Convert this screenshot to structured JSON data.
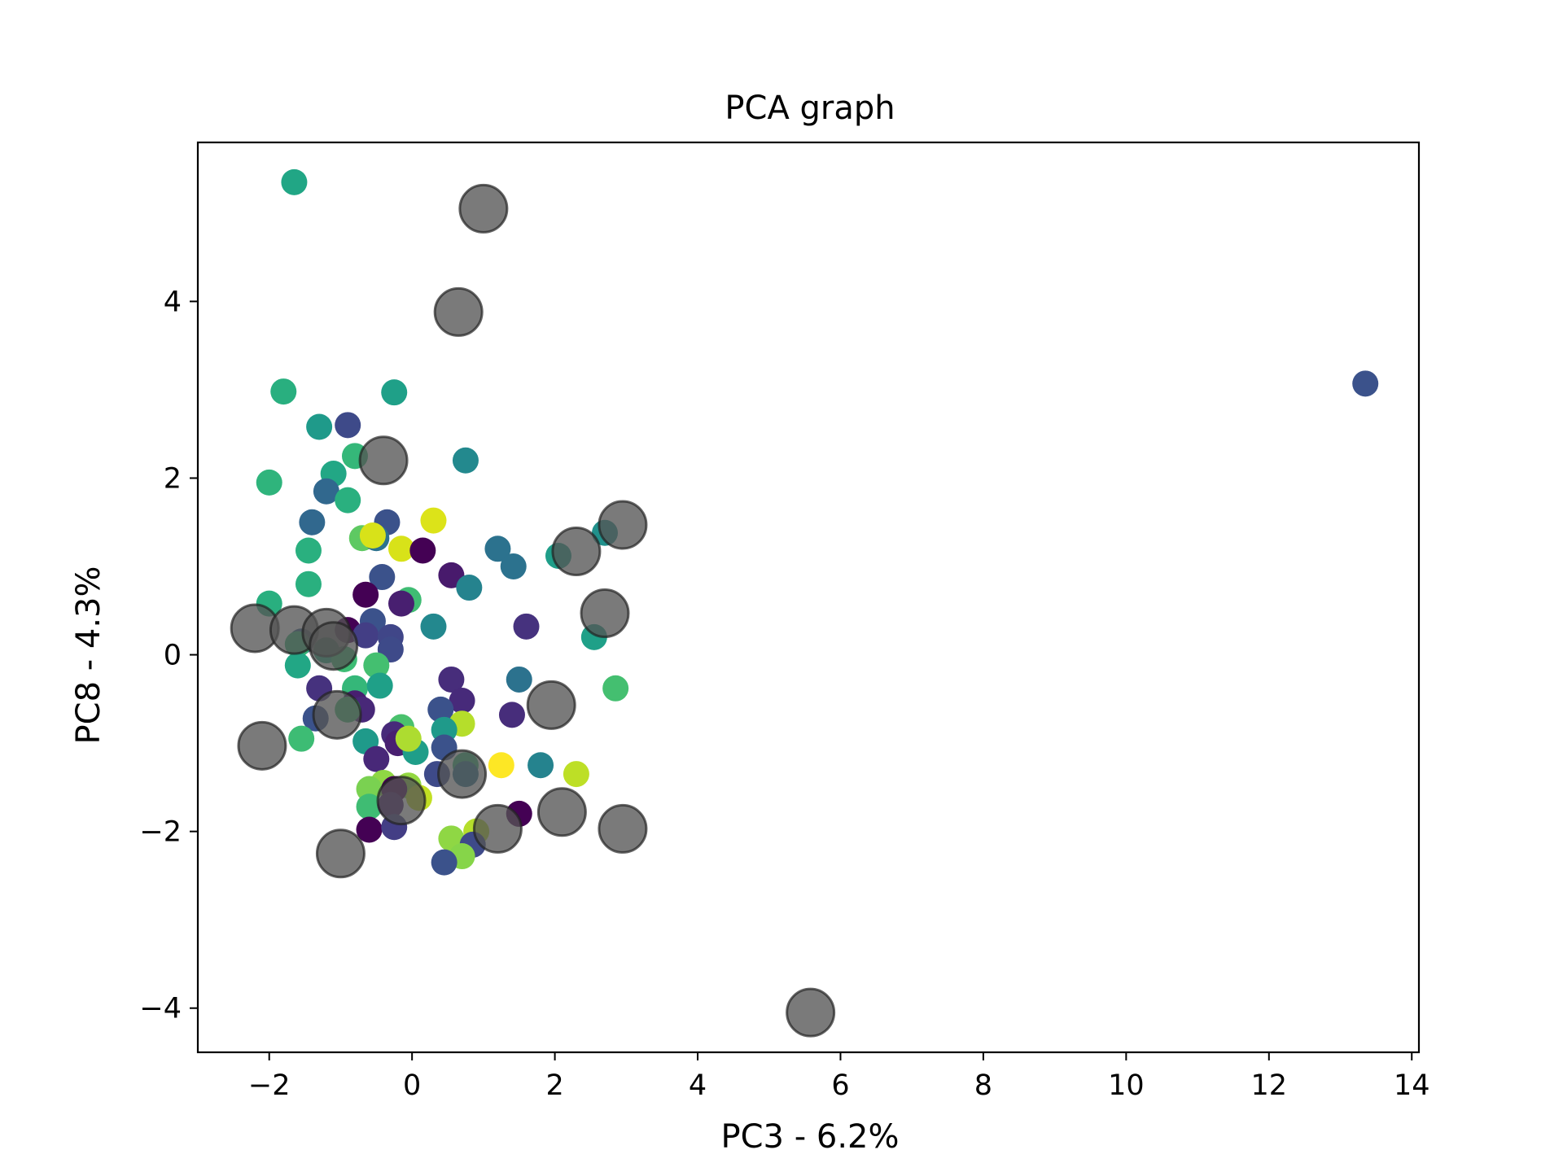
{
  "chart_data": {
    "type": "scatter",
    "title": "PCA graph",
    "xlabel": "PC3 - 6.2%",
    "ylabel": "PC8 - 4.3%",
    "xlim": [
      -3.0,
      14.1
    ],
    "ylim": [
      -4.5,
      5.8
    ],
    "xticks": [
      -2,
      0,
      2,
      4,
      6,
      8,
      10,
      12,
      14
    ],
    "yticks": [
      -4,
      -2,
      0,
      2,
      4
    ],
    "xtick_labels": [
      "−2",
      "0",
      "2",
      "4",
      "6",
      "8",
      "10",
      "12",
      "14"
    ],
    "ytick_labels": [
      "−4",
      "−2",
      "0",
      "2",
      "4"
    ],
    "grid": false,
    "legend": "none",
    "series": [
      {
        "marker": "small colored circles (viridis colormap)",
        "points": [
          {
            "x": -1.65,
            "y": 5.35,
            "color": "#21a685"
          },
          {
            "x": -1.8,
            "y": 2.98,
            "color": "#29af7f"
          },
          {
            "x": -0.25,
            "y": 2.97,
            "color": "#1fa088"
          },
          {
            "x": -1.3,
            "y": 2.58,
            "color": "#1f9a8a"
          },
          {
            "x": -0.9,
            "y": 2.6,
            "color": "#3e4a89"
          },
          {
            "x": -0.8,
            "y": 2.25,
            "color": "#35b779"
          },
          {
            "x": 0.75,
            "y": 2.2,
            "color": "#23898e"
          },
          {
            "x": -1.1,
            "y": 2.05,
            "color": "#22a785"
          },
          {
            "x": -2.0,
            "y": 1.95,
            "color": "#2fb47c"
          },
          {
            "x": -1.2,
            "y": 1.85,
            "color": "#31688e"
          },
          {
            "x": -0.9,
            "y": 1.75,
            "color": "#2ab07f"
          },
          {
            "x": -1.4,
            "y": 1.5,
            "color": "#31688e"
          },
          {
            "x": -0.35,
            "y": 1.5,
            "color": "#3b528b"
          },
          {
            "x": 0.3,
            "y": 1.52,
            "color": "#dce319"
          },
          {
            "x": -0.7,
            "y": 1.32,
            "color": "#5ec962"
          },
          {
            "x": -0.5,
            "y": 1.32,
            "color": "#2c728e"
          },
          {
            "x": -0.55,
            "y": 1.35,
            "color": "#d8e219"
          },
          {
            "x": -0.15,
            "y": 1.2,
            "color": "#d8e219"
          },
          {
            "x": 0.15,
            "y": 1.18,
            "color": "#440154"
          },
          {
            "x": -1.45,
            "y": 1.18,
            "color": "#2ab07f"
          },
          {
            "x": 1.2,
            "y": 1.2,
            "color": "#2c728e"
          },
          {
            "x": 1.42,
            "y": 1.0,
            "color": "#2c728e"
          },
          {
            "x": 2.05,
            "y": 1.12,
            "color": "#1f9e89"
          },
          {
            "x": 2.7,
            "y": 1.38,
            "color": "#21918c"
          },
          {
            "x": -1.45,
            "y": 0.8,
            "color": "#2ab07f"
          },
          {
            "x": -0.42,
            "y": 0.88,
            "color": "#3b528b"
          },
          {
            "x": 0.55,
            "y": 0.9,
            "color": "#481a6c"
          },
          {
            "x": 0.8,
            "y": 0.76,
            "color": "#25838e"
          },
          {
            "x": -0.65,
            "y": 0.68,
            "color": "#440154"
          },
          {
            "x": -0.05,
            "y": 0.62,
            "color": "#3fbc73"
          },
          {
            "x": -0.15,
            "y": 0.58,
            "color": "#481f70"
          },
          {
            "x": -2.0,
            "y": 0.58,
            "color": "#29af7f"
          },
          {
            "x": -0.55,
            "y": 0.38,
            "color": "#3b528b"
          },
          {
            "x": 0.3,
            "y": 0.32,
            "color": "#23888e"
          },
          {
            "x": 1.6,
            "y": 0.32,
            "color": "#46327e"
          },
          {
            "x": 2.55,
            "y": 0.2,
            "color": "#1fa088"
          },
          {
            "x": -0.9,
            "y": 0.28,
            "color": "#440154"
          },
          {
            "x": -0.65,
            "y": 0.22,
            "color": "#433e85"
          },
          {
            "x": -0.3,
            "y": 0.2,
            "color": "#404688"
          },
          {
            "x": -0.3,
            "y": 0.06,
            "color": "#3e4a89"
          },
          {
            "x": -1.55,
            "y": 0.15,
            "color": "#355f8d"
          },
          {
            "x": -1.6,
            "y": 0.12,
            "color": "#35b779"
          },
          {
            "x": -1.2,
            "y": 0.05,
            "color": "#26ad81"
          },
          {
            "x": -0.95,
            "y": -0.05,
            "color": "#3dbc74"
          },
          {
            "x": -1.6,
            "y": -0.12,
            "color": "#22a785"
          },
          {
            "x": -0.5,
            "y": -0.12,
            "color": "#44bf70"
          },
          {
            "x": -1.3,
            "y": -0.38,
            "color": "#46327e"
          },
          {
            "x": -0.8,
            "y": -0.38,
            "color": "#35b779"
          },
          {
            "x": -0.45,
            "y": -0.35,
            "color": "#1fa088"
          },
          {
            "x": 0.55,
            "y": -0.28,
            "color": "#472d7b"
          },
          {
            "x": 1.5,
            "y": -0.28,
            "color": "#2c728e"
          },
          {
            "x": 2.85,
            "y": -0.38,
            "color": "#44bf70"
          },
          {
            "x": 0.7,
            "y": -0.52,
            "color": "#472a7a"
          },
          {
            "x": -0.8,
            "y": -0.55,
            "color": "#481f70"
          },
          {
            "x": -0.7,
            "y": -0.62,
            "color": "#482878"
          },
          {
            "x": -1.35,
            "y": -0.72,
            "color": "#3b528b"
          },
          {
            "x": -0.9,
            "y": -0.62,
            "color": "#3fbc73"
          },
          {
            "x": 0.4,
            "y": -0.62,
            "color": "#3b528b"
          },
          {
            "x": 1.4,
            "y": -0.68,
            "color": "#472d7b"
          },
          {
            "x": 0.7,
            "y": -0.78,
            "color": "#b5de2b"
          },
          {
            "x": -0.15,
            "y": -0.82,
            "color": "#4ac16d"
          },
          {
            "x": -0.25,
            "y": -0.9,
            "color": "#472a7a"
          },
          {
            "x": 0.45,
            "y": -0.85,
            "color": "#1f9a8a"
          },
          {
            "x": -1.55,
            "y": -0.95,
            "color": "#3dbc74"
          },
          {
            "x": -0.65,
            "y": -0.98,
            "color": "#1f9a8a"
          },
          {
            "x": -0.2,
            "y": -1.0,
            "color": "#481f70"
          },
          {
            "x": 0.45,
            "y": -1.05,
            "color": "#3b528b"
          },
          {
            "x": 0.05,
            "y": -1.1,
            "color": "#1f9e89"
          },
          {
            "x": -0.05,
            "y": -0.95,
            "color": "#addc30"
          },
          {
            "x": -0.5,
            "y": -1.18,
            "color": "#482878"
          },
          {
            "x": 0.75,
            "y": -1.25,
            "color": "#35b779"
          },
          {
            "x": 1.25,
            "y": -1.25,
            "color": "#fde725"
          },
          {
            "x": 1.8,
            "y": -1.25,
            "color": "#25838e"
          },
          {
            "x": 0.35,
            "y": -1.35,
            "color": "#3e4a89"
          },
          {
            "x": 0.75,
            "y": -1.35,
            "color": "#2c728e"
          },
          {
            "x": 2.3,
            "y": -1.35,
            "color": "#bddf26"
          },
          {
            "x": -0.4,
            "y": -1.45,
            "color": "#8fd744"
          },
          {
            "x": -0.05,
            "y": -1.48,
            "color": "#93d741"
          },
          {
            "x": -0.6,
            "y": -1.52,
            "color": "#7ad151"
          },
          {
            "x": -0.25,
            "y": -1.52,
            "color": "#440154"
          },
          {
            "x": 0.1,
            "y": -1.62,
            "color": "#c2df23"
          },
          {
            "x": -0.6,
            "y": -1.72,
            "color": "#3fbc73"
          },
          {
            "x": -0.3,
            "y": -1.7,
            "color": "#481f70"
          },
          {
            "x": 1.5,
            "y": -1.8,
            "color": "#440154"
          },
          {
            "x": -0.6,
            "y": -1.98,
            "color": "#440154"
          },
          {
            "x": -0.25,
            "y": -1.95,
            "color": "#433e85"
          },
          {
            "x": 0.9,
            "y": -2.0,
            "color": "#b5de2b"
          },
          {
            "x": 0.55,
            "y": -2.08,
            "color": "#8fd744"
          },
          {
            "x": 0.85,
            "y": -2.15,
            "color": "#3e4a89"
          },
          {
            "x": 0.7,
            "y": -2.28,
            "color": "#86d549"
          },
          {
            "x": 0.45,
            "y": -2.35,
            "color": "#3b528b"
          },
          {
            "x": 13.35,
            "y": 3.07,
            "color": "#3b528b"
          }
        ]
      },
      {
        "marker": "large gray circles with dark edge (semi-transparent)",
        "color": "#555555",
        "points": [
          {
            "x": 1.0,
            "y": 5.05
          },
          {
            "x": 0.65,
            "y": 3.88
          },
          {
            "x": -0.4,
            "y": 2.2
          },
          {
            "x": 2.95,
            "y": 1.47
          },
          {
            "x": 2.3,
            "y": 1.17
          },
          {
            "x": 2.7,
            "y": 0.47
          },
          {
            "x": -2.2,
            "y": 0.3
          },
          {
            "x": -1.65,
            "y": 0.28
          },
          {
            "x": -1.2,
            "y": 0.25
          },
          {
            "x": -1.1,
            "y": 0.1
          },
          {
            "x": 1.95,
            "y": -0.57
          },
          {
            "x": -1.05,
            "y": -0.68
          },
          {
            "x": -2.1,
            "y": -1.03
          },
          {
            "x": 0.7,
            "y": -1.35
          },
          {
            "x": -0.15,
            "y": -1.65
          },
          {
            "x": 2.1,
            "y": -1.78
          },
          {
            "x": 1.2,
            "y": -1.97
          },
          {
            "x": 2.95,
            "y": -1.97
          },
          {
            "x": -1.0,
            "y": -2.25
          },
          {
            "x": 5.58,
            "y": -4.05
          }
        ]
      }
    ]
  }
}
